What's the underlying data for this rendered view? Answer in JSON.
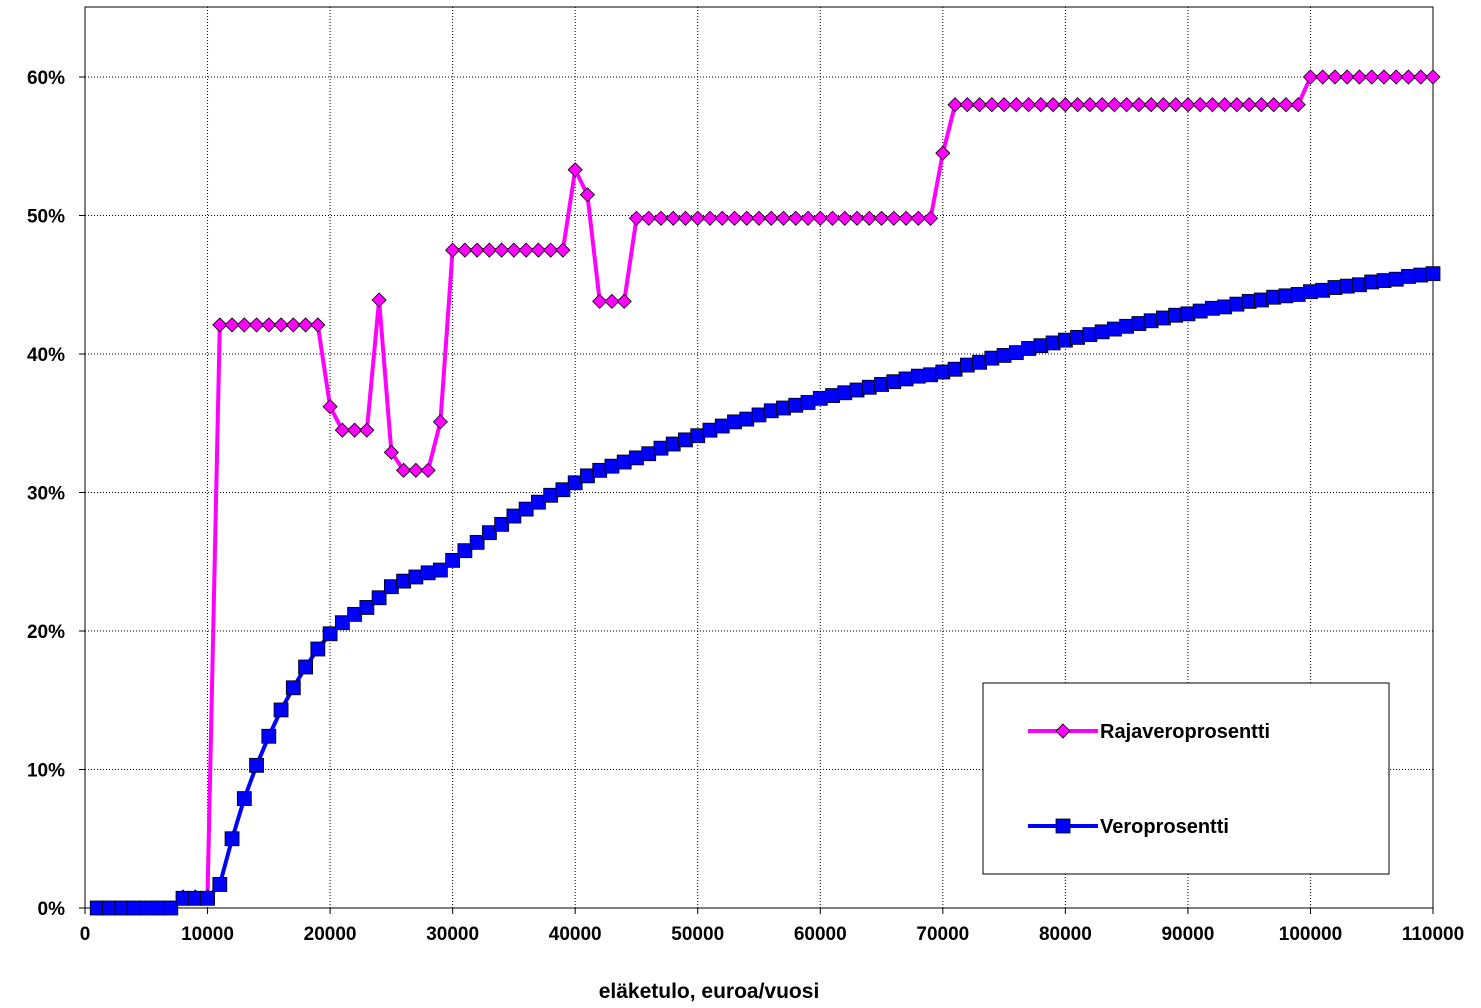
{
  "chart_data": {
    "type": "line",
    "title": "",
    "xlabel": "eläketulo, euroa/vuosi",
    "ylabel": "",
    "xlim": [
      0,
      110000
    ],
    "ylim": [
      0,
      60
    ],
    "x_ticks": [
      0,
      10000,
      20000,
      30000,
      40000,
      50000,
      60000,
      70000,
      80000,
      90000,
      100000,
      110000
    ],
    "x_tick_labels": [
      "0",
      "10000",
      "20000",
      "30000",
      "40000",
      "50000",
      "60000",
      "70000",
      "80000",
      "90000",
      "100000",
      "110000"
    ],
    "y_ticks": [
      0,
      10,
      20,
      30,
      40,
      50,
      60
    ],
    "y_tick_labels": [
      "0%",
      "10%",
      "20%",
      "30%",
      "40%",
      "50%",
      "60%"
    ],
    "grid": true,
    "legend_position": "bottom-right",
    "x": [
      1000,
      2000,
      3000,
      4000,
      5000,
      6000,
      7000,
      8000,
      9000,
      10000,
      11000,
      12000,
      13000,
      14000,
      15000,
      16000,
      17000,
      18000,
      19000,
      20000,
      21000,
      22000,
      23000,
      24000,
      25000,
      26000,
      27000,
      28000,
      29000,
      30000,
      31000,
      32000,
      33000,
      34000,
      35000,
      36000,
      37000,
      38000,
      39000,
      40000,
      41000,
      42000,
      43000,
      44000,
      45000,
      46000,
      47000,
      48000,
      49000,
      50000,
      51000,
      52000,
      53000,
      54000,
      55000,
      56000,
      57000,
      58000,
      59000,
      60000,
      61000,
      62000,
      63000,
      64000,
      65000,
      66000,
      67000,
      68000,
      69000,
      70000,
      71000,
      72000,
      73000,
      74000,
      75000,
      76000,
      77000,
      78000,
      79000,
      80000,
      81000,
      82000,
      83000,
      84000,
      85000,
      86000,
      87000,
      88000,
      89000,
      90000,
      91000,
      92000,
      93000,
      94000,
      95000,
      96000,
      97000,
      98000,
      99000,
      100000,
      101000,
      102000,
      103000,
      104000,
      105000,
      106000,
      107000,
      108000,
      109000,
      110000
    ],
    "series": [
      {
        "name": "Rajaveroprosentti",
        "color": "#ff00ff",
        "marker": "diamond",
        "values": [
          0,
          0,
          0,
          0,
          0,
          0,
          0,
          0.8,
          0.8,
          0.8,
          42.1,
          42.1,
          42.1,
          42.1,
          42.1,
          42.1,
          42.1,
          42.1,
          42.1,
          36.2,
          34.5,
          34.5,
          34.5,
          43.9,
          32.9,
          31.6,
          31.6,
          31.6,
          35.1,
          47.5,
          47.5,
          47.5,
          47.5,
          47.5,
          47.5,
          47.5,
          47.5,
          47.5,
          47.5,
          53.3,
          51.5,
          43.8,
          43.8,
          43.8,
          49.8,
          49.8,
          49.8,
          49.8,
          49.8,
          49.8,
          49.8,
          49.8,
          49.8,
          49.8,
          49.8,
          49.8,
          49.8,
          49.8,
          49.8,
          49.8,
          49.8,
          49.8,
          49.8,
          49.8,
          49.8,
          49.8,
          49.8,
          49.8,
          49.8,
          54.5,
          58.0,
          58.0,
          58.0,
          58.0,
          58.0,
          58.0,
          58.0,
          58.0,
          58.0,
          58.0,
          58.0,
          58.0,
          58.0,
          58.0,
          58.0,
          58.0,
          58.0,
          58.0,
          58.0,
          58.0,
          58.0,
          58.0,
          58.0,
          58.0,
          58.0,
          58.0,
          58.0,
          58.0,
          58.0,
          60.0,
          60.0,
          60.0,
          60.0,
          60.0,
          60.0,
          60.0,
          60.0,
          60.0,
          60.0,
          60.0
        ]
      },
      {
        "name": "Veroprosentti",
        "color": "#0000ff",
        "marker": "square",
        "values": [
          0,
          0,
          0,
          0,
          0,
          0,
          0,
          0.7,
          0.7,
          0.7,
          1.7,
          5.0,
          7.9,
          10.3,
          12.4,
          14.3,
          15.9,
          17.4,
          18.7,
          19.8,
          20.6,
          21.2,
          21.7,
          22.4,
          23.2,
          23.6,
          23.9,
          24.2,
          24.4,
          25.1,
          25.8,
          26.4,
          27.1,
          27.7,
          28.3,
          28.8,
          29.3,
          29.8,
          30.2,
          30.7,
          31.2,
          31.6,
          31.9,
          32.2,
          32.5,
          32.8,
          33.2,
          33.5,
          33.8,
          34.1,
          34.5,
          34.8,
          35.1,
          35.3,
          35.6,
          35.9,
          36.1,
          36.3,
          36.5,
          36.8,
          37.0,
          37.2,
          37.4,
          37.6,
          37.8,
          38.0,
          38.2,
          38.4,
          38.5,
          38.7,
          38.9,
          39.2,
          39.4,
          39.7,
          39.9,
          40.1,
          40.4,
          40.6,
          40.8,
          41.0,
          41.2,
          41.4,
          41.6,
          41.8,
          42.0,
          42.2,
          42.4,
          42.6,
          42.8,
          42.9,
          43.1,
          43.3,
          43.4,
          43.6,
          43.8,
          43.9,
          44.1,
          44.2,
          44.3,
          44.5,
          44.6,
          44.8,
          44.9,
          45.0,
          45.2,
          45.3,
          45.4,
          45.6,
          45.7,
          45.8
        ]
      }
    ]
  }
}
